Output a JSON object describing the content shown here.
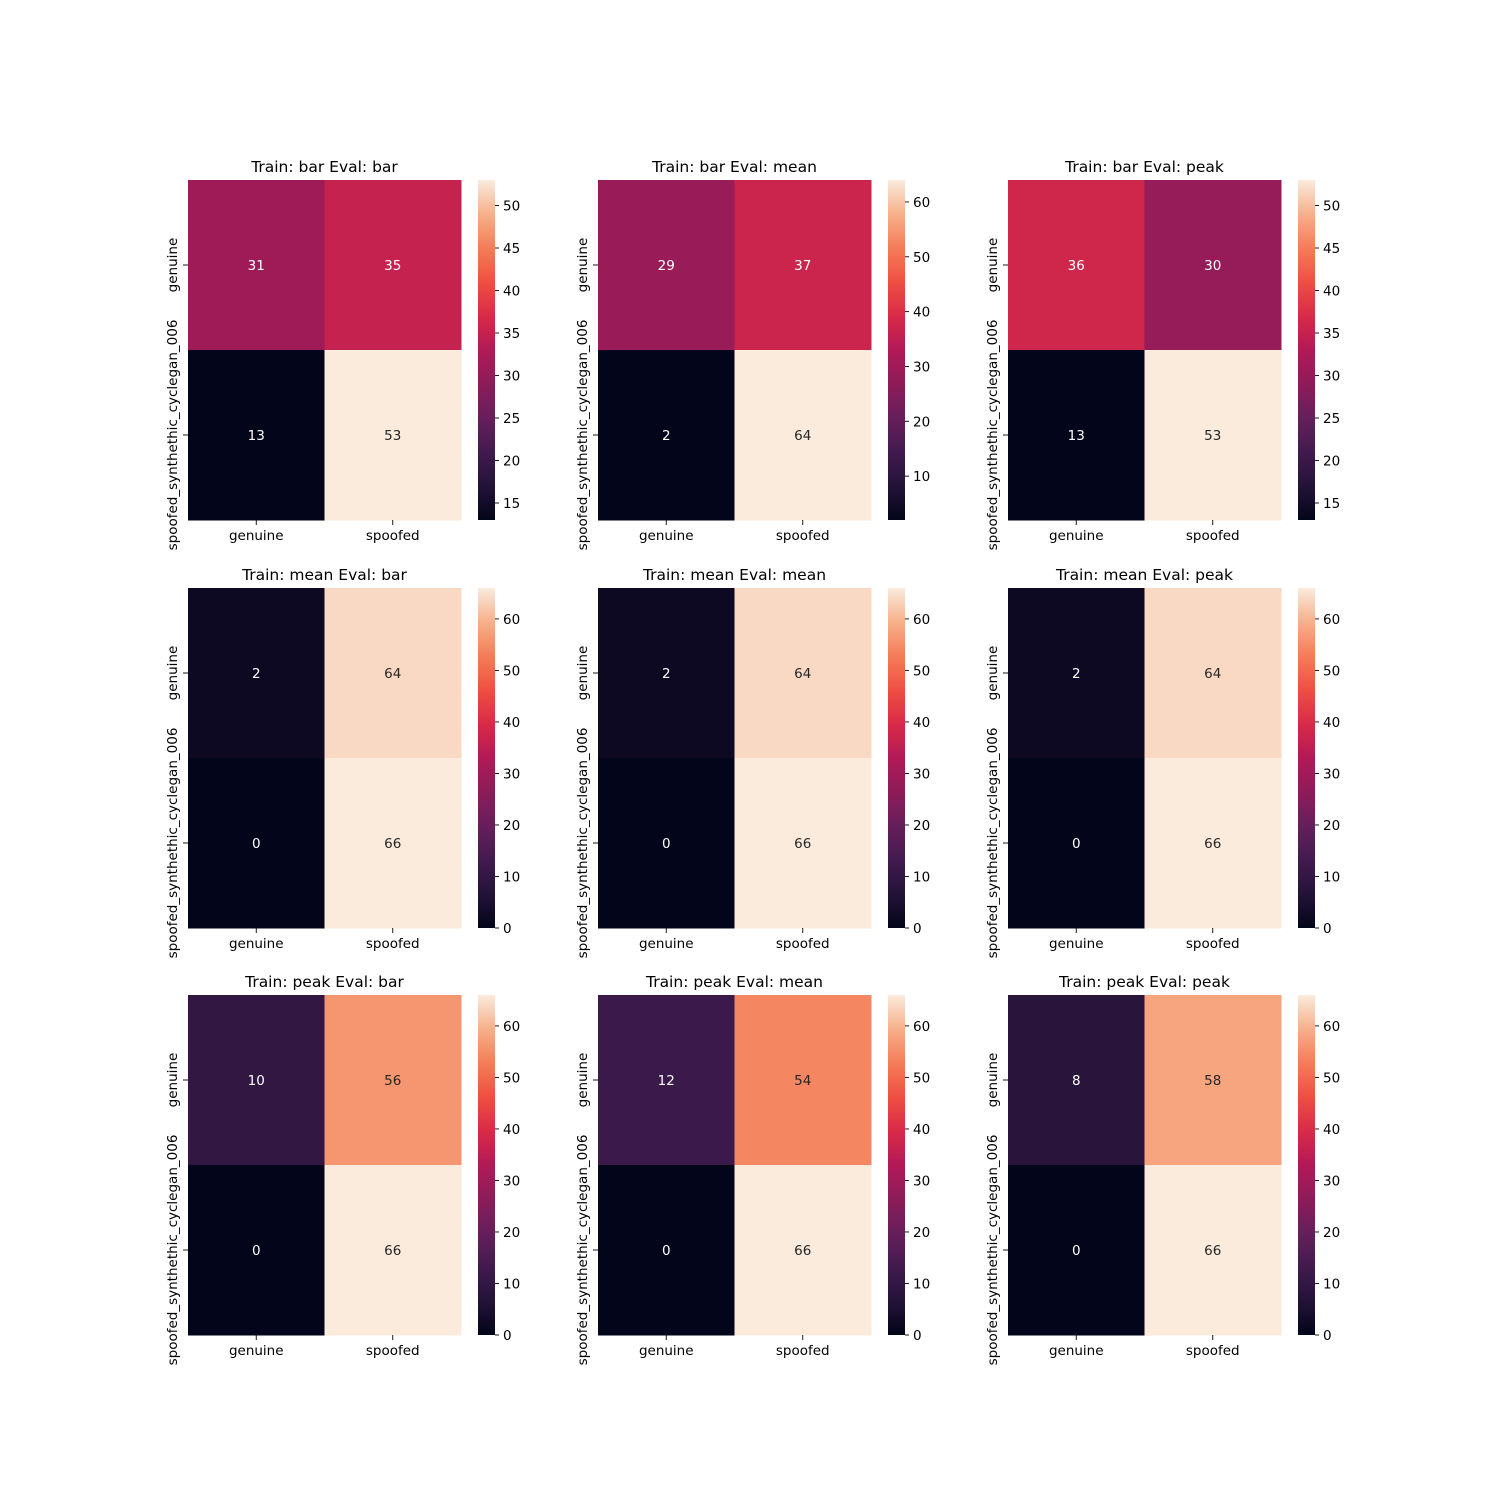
{
  "chart_data": [
    {
      "type": "heatmap",
      "title": "Train: bar Eval: bar",
      "rows": [
        "genuine",
        "spoofed_synthethic_cyclegan_006"
      ],
      "columns": [
        "genuine",
        "spoofed"
      ],
      "values": [
        [
          31,
          35
        ],
        [
          13,
          53
        ]
      ],
      "colorbar": {
        "min": 13,
        "max": 53,
        "ticks": [
          15,
          20,
          25,
          30,
          35,
          40,
          45,
          50
        ]
      },
      "colormap": "rocket"
    },
    {
      "type": "heatmap",
      "title": "Train: bar Eval: mean",
      "rows": [
        "genuine",
        "spoofed_synthethic_cyclegan_006"
      ],
      "columns": [
        "genuine",
        "spoofed"
      ],
      "values": [
        [
          29,
          37
        ],
        [
          2,
          64
        ]
      ],
      "colorbar": {
        "min": 2,
        "max": 64,
        "ticks": [
          10,
          20,
          30,
          40,
          50,
          60
        ]
      },
      "colormap": "rocket"
    },
    {
      "type": "heatmap",
      "title": "Train: bar Eval: peak",
      "rows": [
        "genuine",
        "spoofed_synthethic_cyclegan_006"
      ],
      "columns": [
        "genuine",
        "spoofed"
      ],
      "values": [
        [
          36,
          30
        ],
        [
          13,
          53
        ]
      ],
      "colorbar": {
        "min": 13,
        "max": 53,
        "ticks": [
          15,
          20,
          25,
          30,
          35,
          40,
          45,
          50
        ]
      },
      "colormap": "rocket"
    },
    {
      "type": "heatmap",
      "title": "Train: mean Eval: bar",
      "rows": [
        "genuine",
        "spoofed_synthethic_cyclegan_006"
      ],
      "columns": [
        "genuine",
        "spoofed"
      ],
      "values": [
        [
          2,
          64
        ],
        [
          0,
          66
        ]
      ],
      "colorbar": {
        "min": 0,
        "max": 66,
        "ticks": [
          0,
          10,
          20,
          30,
          40,
          50,
          60
        ]
      },
      "colormap": "rocket"
    },
    {
      "type": "heatmap",
      "title": "Train: mean Eval: mean",
      "rows": [
        "genuine",
        "spoofed_synthethic_cyclegan_006"
      ],
      "columns": [
        "genuine",
        "spoofed"
      ],
      "values": [
        [
          2,
          64
        ],
        [
          0,
          66
        ]
      ],
      "colorbar": {
        "min": 0,
        "max": 66,
        "ticks": [
          0,
          10,
          20,
          30,
          40,
          50,
          60
        ]
      },
      "colormap": "rocket"
    },
    {
      "type": "heatmap",
      "title": "Train: mean Eval: peak",
      "rows": [
        "genuine",
        "spoofed_synthethic_cyclegan_006"
      ],
      "columns": [
        "genuine",
        "spoofed"
      ],
      "values": [
        [
          2,
          64
        ],
        [
          0,
          66
        ]
      ],
      "colorbar": {
        "min": 0,
        "max": 66,
        "ticks": [
          0,
          10,
          20,
          30,
          40,
          50,
          60
        ]
      },
      "colormap": "rocket"
    },
    {
      "type": "heatmap",
      "title": "Train: peak Eval: bar",
      "rows": [
        "genuine",
        "spoofed_synthethic_cyclegan_006"
      ],
      "columns": [
        "genuine",
        "spoofed"
      ],
      "values": [
        [
          10,
          56
        ],
        [
          0,
          66
        ]
      ],
      "colorbar": {
        "min": 0,
        "max": 66,
        "ticks": [
          0,
          10,
          20,
          30,
          40,
          50,
          60
        ]
      },
      "colormap": "rocket"
    },
    {
      "type": "heatmap",
      "title": "Train: peak Eval: mean",
      "rows": [
        "genuine",
        "spoofed_synthethic_cyclegan_006"
      ],
      "columns": [
        "genuine",
        "spoofed"
      ],
      "values": [
        [
          12,
          54
        ],
        [
          0,
          66
        ]
      ],
      "colorbar": {
        "min": 0,
        "max": 66,
        "ticks": [
          0,
          10,
          20,
          30,
          40,
          50,
          60
        ]
      },
      "colormap": "rocket"
    },
    {
      "type": "heatmap",
      "title": "Train: peak Eval: peak",
      "rows": [
        "genuine",
        "spoofed_synthethic_cyclegan_006"
      ],
      "columns": [
        "genuine",
        "spoofed"
      ],
      "values": [
        [
          8,
          58
        ],
        [
          0,
          66
        ]
      ],
      "colorbar": {
        "min": 0,
        "max": 66,
        "ticks": [
          0,
          10,
          20,
          30,
          40,
          50,
          60
        ]
      },
      "colormap": "rocket"
    }
  ]
}
